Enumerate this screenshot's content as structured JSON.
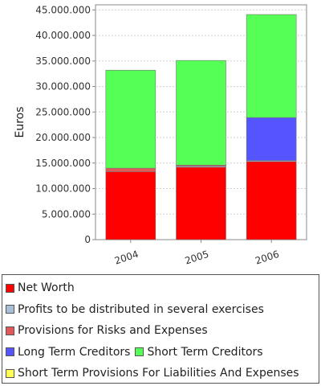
{
  "chart_data": {
    "type": "bar",
    "stacked": true,
    "categories": [
      "2004",
      "2005",
      "2006"
    ],
    "ylabel": "Euros",
    "xlabel": "",
    "ylim": [
      0,
      46000000
    ],
    "yticks": [
      "0",
      "5.000.000",
      "10.000.000",
      "15.000.000",
      "20.000.000",
      "25.000.000",
      "30.000.000",
      "35.000.000",
      "40.000.000",
      "45.000.000"
    ],
    "grid": true,
    "legend_position": "bottom",
    "series": [
      {
        "name": "Net Worth",
        "color": "#ff0000",
        "values": [
          13300000,
          14200000,
          15300000
        ]
      },
      {
        "name": "Profits to be distributed in several exercises",
        "color": "#a8bfd8",
        "values": [
          0,
          200000,
          200000
        ]
      },
      {
        "name": "Provisions for Risks and Expenses",
        "color": "#e05858",
        "values": [
          700000,
          200000,
          0
        ]
      },
      {
        "name": "Long Term Creditors",
        "color": "#5555ff",
        "values": [
          0,
          0,
          8400000
        ]
      },
      {
        "name": "Short Term Creditors",
        "color": "#55ff55",
        "values": [
          19200000,
          20500000,
          20200000
        ]
      },
      {
        "name": "Short Term Provisions For Liabilities And Expenses",
        "color": "#ffff55",
        "values": [
          0,
          0,
          0
        ]
      }
    ]
  },
  "legend": {
    "rows": [
      [
        0
      ],
      [
        1
      ],
      [
        2
      ],
      [
        3,
        4
      ],
      [
        5
      ]
    ]
  }
}
